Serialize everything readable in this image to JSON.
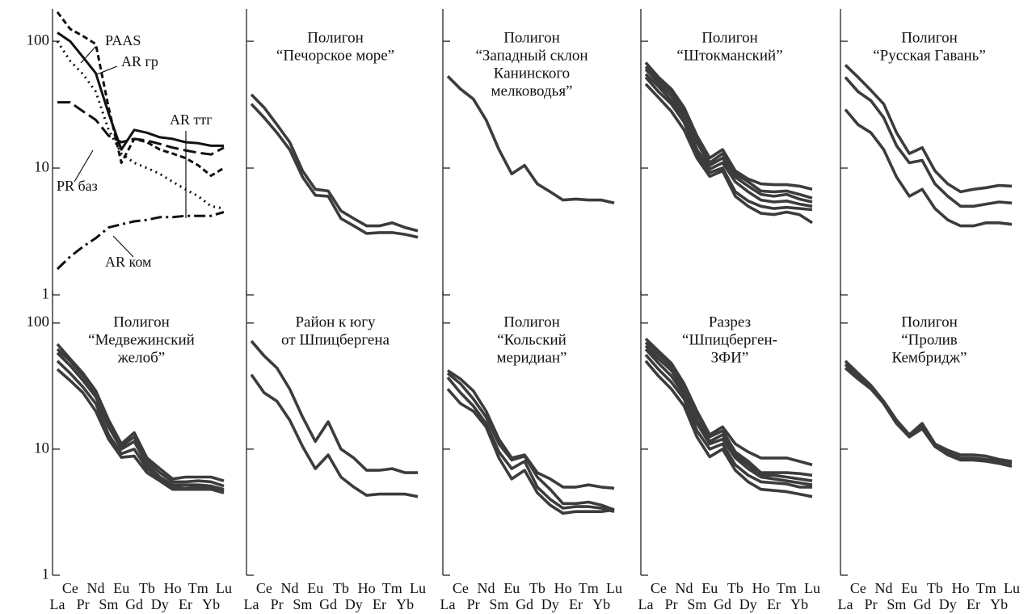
{
  "chart_data": [
    {
      "type": "line",
      "title": [],
      "log_y": true,
      "ylim": [
        1,
        180
      ],
      "yticks": [
        1,
        10,
        100
      ],
      "show_ytick_labels": true,
      "show_xtick_labels": false,
      "color": "#111",
      "categories": [
        "La",
        "Ce",
        "Pr",
        "Nd",
        "Sm",
        "Eu",
        "Gd",
        "Tb",
        "Dy",
        "Ho",
        "Er",
        "Tm",
        "Yb",
        "Lu"
      ],
      "series": [
        {
          "name": "PAAS",
          "values": [
            117,
            100,
            75,
            56,
            27,
            14,
            20,
            19,
            17.5,
            17,
            16,
            15.7,
            15,
            15
          ]
        },
        {
          "name": "AR гр",
          "dash": "7,4",
          "values": [
            170,
            125,
            110,
            95,
            30,
            11,
            17,
            16,
            14,
            13,
            12,
            10.5,
            8.7,
            10
          ]
        },
        {
          "name": "PR баз",
          "dash": "16,6",
          "values": [
            33,
            33,
            28,
            24,
            18,
            16,
            17,
            16.5,
            15.5,
            14.5,
            13.8,
            13.2,
            12.8,
            14.5
          ]
        },
        {
          "name": "AR ттг",
          "dash": "2,5",
          "values": [
            100,
            70,
            55,
            40,
            20,
            13,
            11,
            10,
            9,
            7.8,
            6.8,
            6,
            5,
            4.8
          ]
        },
        {
          "name": "AR ком",
          "dash": "14,5,3,5",
          "values": [
            1.6,
            2,
            2.4,
            2.8,
            3.4,
            3.6,
            3.8,
            3.9,
            4.1,
            4.1,
            4.2,
            4.2,
            4.2,
            4.5
          ]
        }
      ]
    },
    {
      "type": "line",
      "title": [
        "Полигон",
        "“Печорское море”"
      ],
      "log_y": true,
      "ylim": [
        1,
        180
      ],
      "yticks": [
        1,
        10,
        100
      ],
      "show_ytick_labels": false,
      "show_xtick_labels": false,
      "color": "#3c3c3c",
      "categories": [
        "La",
        "Ce",
        "Pr",
        "Nd",
        "Sm",
        "Eu",
        "Gd",
        "Tb",
        "Dy",
        "Ho",
        "Er",
        "Tm",
        "Yb",
        "Lu"
      ],
      "series": [
        {
          "values": [
            38,
            30,
            22,
            16,
            9.5,
            6.8,
            6.6,
            4.6,
            4,
            3.5,
            3.5,
            3.7,
            3.4,
            3.2
          ]
        },
        {
          "values": [
            32,
            25,
            19,
            14,
            8.5,
            6.1,
            6,
            4,
            3.5,
            3.05,
            3.1,
            3.1,
            3,
            2.85
          ]
        }
      ]
    },
    {
      "type": "line",
      "title": [
        "Полигон",
        "“Западный склон",
        "Канинского",
        "мелководья”"
      ],
      "log_y": true,
      "ylim": [
        1,
        180
      ],
      "yticks": [
        1,
        10,
        100
      ],
      "show_ytick_labels": false,
      "show_xtick_labels": false,
      "color": "#3c3c3c",
      "categories": [
        "La",
        "Ce",
        "Pr",
        "Nd",
        "Sm",
        "Eu",
        "Gd",
        "Tb",
        "Dy",
        "Ho",
        "Er",
        "Tm",
        "Yb",
        "Lu"
      ],
      "series": [
        {
          "values": [
            53,
            42,
            35,
            24,
            14,
            9,
            10.5,
            7.5,
            6.5,
            5.6,
            5.7,
            5.6,
            5.6,
            5.3
          ]
        }
      ]
    },
    {
      "type": "line",
      "title": [
        "Полигон",
        "“Штокманский”"
      ],
      "log_y": true,
      "ylim": [
        1,
        180
      ],
      "yticks": [
        1,
        10,
        100
      ],
      "show_ytick_labels": false,
      "show_xtick_labels": false,
      "color": "#3c3c3c",
      "categories": [
        "La",
        "Ce",
        "Pr",
        "Nd",
        "Sm",
        "Eu",
        "Gd",
        "Tb",
        "Dy",
        "Ho",
        "Er",
        "Tm",
        "Yb",
        "Lu"
      ],
      "series": [
        {
          "values": [
            68,
            52,
            42,
            30,
            18,
            12,
            14,
            9.5,
            8.2,
            7.5,
            7.4,
            7.4,
            7.2,
            6.8
          ]
        },
        {
          "values": [
            63,
            50,
            40,
            29,
            17,
            11,
            13,
            9,
            7.8,
            6.6,
            6.5,
            6.6,
            6.2,
            5.8
          ]
        },
        {
          "values": [
            60,
            47,
            37,
            27,
            16,
            10.5,
            12,
            8.5,
            7.2,
            6.2,
            6,
            6.2,
            5.7,
            5.4
          ]
        },
        {
          "values": [
            55,
            44,
            34,
            25,
            14,
            9.8,
            11,
            7.8,
            6.5,
            5.6,
            5.4,
            5.5,
            5.2,
            5
          ]
        },
        {
          "values": [
            52,
            40,
            32,
            23,
            13,
            9.2,
            10,
            6.5,
            5.5,
            5,
            4.8,
            4.9,
            4.8,
            4.7
          ]
        },
        {
          "values": [
            46,
            36,
            28,
            20,
            12,
            8.6,
            9.5,
            6,
            5,
            4.4,
            4.3,
            4.5,
            4.3,
            3.7
          ]
        }
      ]
    },
    {
      "type": "line",
      "title": [
        "Полигон",
        "“Русская Гавань”"
      ],
      "log_y": true,
      "ylim": [
        1,
        180
      ],
      "yticks": [
        1,
        10,
        100
      ],
      "show_ytick_labels": false,
      "show_xtick_labels": false,
      "color": "#3c3c3c",
      "categories": [
        "La",
        "Ce",
        "Pr",
        "Nd",
        "Sm",
        "Eu",
        "Gd",
        "Tb",
        "Dy",
        "Ho",
        "Er",
        "Tm",
        "Yb",
        "Lu"
      ],
      "series": [
        {
          "values": [
            65,
            52,
            41,
            32,
            19,
            13,
            14.5,
            9.5,
            7.5,
            6.5,
            6.8,
            7,
            7.3,
            7.2
          ]
        },
        {
          "values": [
            52,
            40,
            34,
            25,
            15,
            11,
            11.5,
            7.5,
            6,
            5,
            5,
            5.2,
            5.4,
            5.3
          ]
        },
        {
          "values": [
            29,
            22,
            19,
            14,
            8.5,
            6,
            6.8,
            4.8,
            3.9,
            3.5,
            3.5,
            3.7,
            3.7,
            3.6
          ]
        }
      ]
    },
    {
      "type": "line",
      "title": [
        "Полигон",
        "“Медвежинский",
        "желоб”"
      ],
      "log_y": true,
      "ylim": [
        1,
        180
      ],
      "yticks": [
        1,
        10,
        100
      ],
      "show_ytick_labels": true,
      "show_xtick_labels": true,
      "color": "#3c3c3c",
      "categories": [
        "La",
        "Ce",
        "Pr",
        "Nd",
        "Sm",
        "Eu",
        "Gd",
        "Tb",
        "Dy",
        "Ho",
        "Er",
        "Tm",
        "Yb",
        "Lu"
      ],
      "series": [
        {
          "values": [
            68,
            52,
            40,
            29,
            17,
            11,
            13.5,
            8.5,
            7,
            5.8,
            6,
            6,
            6,
            5.6
          ]
        },
        {
          "values": [
            62,
            50,
            38,
            28,
            16,
            10.5,
            12.5,
            8,
            6.5,
            5.5,
            5.5,
            5.6,
            5.5,
            5.1
          ]
        },
        {
          "values": [
            58,
            46,
            35,
            26,
            15,
            10,
            11.5,
            7.5,
            6,
            5.2,
            5.2,
            5.2,
            5.1,
            4.8
          ]
        },
        {
          "values": [
            50,
            40,
            31,
            23,
            13,
            9.2,
            10,
            7,
            5.8,
            5,
            4.9,
            5,
            4.9,
            4.6
          ]
        },
        {
          "values": [
            43,
            35,
            28,
            20,
            12,
            8.6,
            8.8,
            6.5,
            5.6,
            4.8,
            4.8,
            4.8,
            4.8,
            4.5
          ]
        }
      ]
    },
    {
      "type": "line",
      "title": [
        "Район к югу",
        "от Шпицбергена"
      ],
      "log_y": true,
      "ylim": [
        1,
        180
      ],
      "yticks": [
        1,
        10,
        100
      ],
      "show_ytick_labels": false,
      "show_xtick_labels": true,
      "color": "#3c3c3c",
      "categories": [
        "La",
        "Ce",
        "Pr",
        "Nd",
        "Sm",
        "Eu",
        "Gd",
        "Tb",
        "Dy",
        "Ho",
        "Er",
        "Tm",
        "Yb",
        "Lu"
      ],
      "series": [
        {
          "values": [
            72,
            55,
            44,
            30,
            18,
            11.5,
            16.5,
            10,
            8.5,
            6.8,
            6.8,
            7,
            6.5,
            6.5
          ]
        },
        {
          "values": [
            39,
            28,
            24,
            17,
            10.5,
            7,
            9,
            6,
            5,
            4.3,
            4.4,
            4.4,
            4.4,
            4.2
          ]
        }
      ]
    },
    {
      "type": "line",
      "title": [
        "Полигон",
        "“Кольский",
        "меридиан”"
      ],
      "log_y": true,
      "ylim": [
        1,
        180
      ],
      "yticks": [
        1,
        10,
        100
      ],
      "show_ytick_labels": false,
      "show_xtick_labels": true,
      "color": "#3c3c3c",
      "categories": [
        "La",
        "Ce",
        "Pr",
        "Nd",
        "Sm",
        "Eu",
        "Gd",
        "Tb",
        "Dy",
        "Ho",
        "Er",
        "Tm",
        "Yb",
        "Lu"
      ],
      "series": [
        {
          "values": [
            42,
            36,
            29,
            20,
            12,
            8.5,
            9,
            6.5,
            5.8,
            5,
            5,
            5.2,
            5,
            4.9
          ]
        },
        {
          "values": [
            40,
            33,
            25,
            18,
            11,
            8.2,
            8.8,
            6,
            4.8,
            3.7,
            3.7,
            3.8,
            3.6,
            3.3
          ]
        },
        {
          "values": [
            37,
            28,
            22,
            16,
            9.5,
            7,
            8,
            5,
            4,
            3.4,
            3.5,
            3.5,
            3.4,
            3.2
          ]
        },
        {
          "values": [
            30,
            23,
            20,
            15,
            8.5,
            5.8,
            6.8,
            4.5,
            3.6,
            3.1,
            3.2,
            3.2,
            3.2,
            3.3
          ]
        }
      ]
    },
    {
      "type": "line",
      "title": [
        "Разрез",
        "“Шпицберген-",
        "ЗФИ”"
      ],
      "log_y": true,
      "ylim": [
        1,
        180
      ],
      "yticks": [
        1,
        10,
        100
      ],
      "show_ytick_labels": false,
      "show_xtick_labels": true,
      "color": "#3c3c3c",
      "categories": [
        "La",
        "Ce",
        "Pr",
        "Nd",
        "Sm",
        "Eu",
        "Gd",
        "Tb",
        "Dy",
        "Ho",
        "Er",
        "Tm",
        "Yb",
        "Lu"
      ],
      "series": [
        {
          "values": [
            75,
            60,
            48,
            33,
            20,
            13,
            15,
            11,
            9.5,
            8.5,
            8.5,
            8.5,
            8,
            7.5
          ]
        },
        {
          "values": [
            70,
            56,
            45,
            31,
            19,
            12.5,
            14,
            9.5,
            8,
            6.5,
            6.5,
            6.5,
            6.4,
            6.2
          ]
        },
        {
          "values": [
            66,
            52,
            42,
            29,
            17,
            11.5,
            13,
            9,
            7.5,
            6.2,
            6.2,
            6,
            5.8,
            5.6
          ]
        },
        {
          "values": [
            62,
            48,
            38,
            27,
            16,
            11,
            12,
            8.5,
            7,
            6,
            5.8,
            5.6,
            5.4,
            5.2
          ]
        },
        {
          "values": [
            56,
            43,
            34,
            25,
            14,
            10,
            11,
            7.5,
            6.2,
            5.5,
            5.4,
            5.3,
            5,
            5
          ]
        },
        {
          "values": [
            50,
            38,
            30,
            22,
            12.5,
            8.7,
            10,
            6.8,
            5.5,
            4.8,
            4.7,
            4.6,
            4.4,
            4.2
          ]
        }
      ]
    },
    {
      "type": "line",
      "title": [
        "Полигон",
        "“Пролив",
        "Кембридж”"
      ],
      "log_y": true,
      "ylim": [
        1,
        180
      ],
      "yticks": [
        1,
        10,
        100
      ],
      "show_ytick_labels": false,
      "show_xtick_labels": true,
      "color": "#3c3c3c",
      "categories": [
        "La",
        "Ce",
        "Pr",
        "Nd",
        "Sm",
        "Eu",
        "Gd",
        "Tb",
        "Dy",
        "Ho",
        "Er",
        "Tm",
        "Yb",
        "Lu"
      ],
      "series": [
        {
          "values": [
            50,
            40,
            32,
            24,
            17,
            13,
            16,
            11,
            9.8,
            9,
            9,
            8.8,
            8.3,
            8
          ]
        },
        {
          "values": [
            47,
            38,
            31,
            23,
            16,
            12.5,
            15,
            10.5,
            9.3,
            8.5,
            8.5,
            8.3,
            8,
            7.7
          ]
        },
        {
          "values": [
            44,
            36,
            30,
            23,
            16,
            12.5,
            14.5,
            10.5,
            9,
            8.2,
            8.2,
            8,
            7.7,
            7.3
          ]
        }
      ]
    }
  ]
}
